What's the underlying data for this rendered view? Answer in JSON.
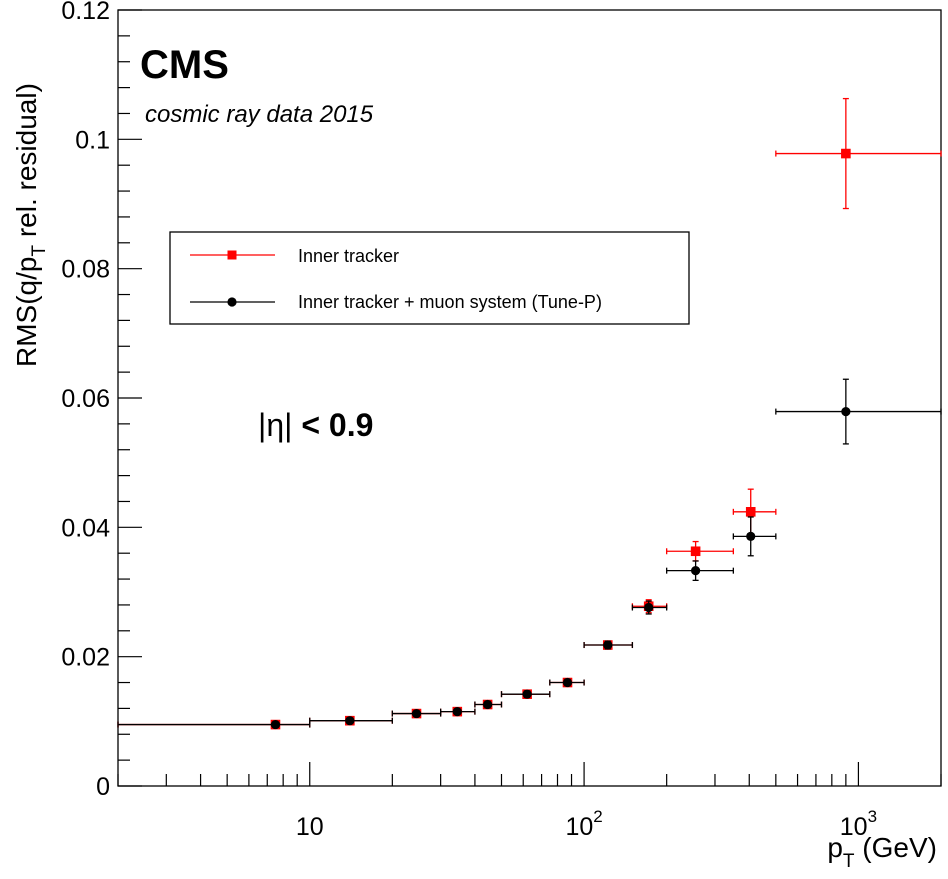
{
  "chart_data": {
    "type": "scatter",
    "experiment_label": "CMS",
    "subtitle": "cosmic ray data 2015",
    "region_label_symbol": "|η|",
    "region_label_rest": " < 0.9",
    "xlabel": {
      "base": "p",
      "sub": "T",
      "unit": " (GeV)"
    },
    "ylabel": {
      "part1": "RMS(q/p",
      "sub": "T",
      "part2": " rel. residual)"
    },
    "x_scale": "log",
    "xlim": [
      2,
      2000
    ],
    "ylim": [
      0,
      0.12
    ],
    "y_ticks": [
      {
        "value": 0,
        "label": "0"
      },
      {
        "value": 0.02,
        "label": "0.02"
      },
      {
        "value": 0.04,
        "label": "0.04"
      },
      {
        "value": 0.06,
        "label": "0.06"
      },
      {
        "value": 0.08,
        "label": "0.08"
      },
      {
        "value": 0.1,
        "label": "0.1"
      },
      {
        "value": 0.12,
        "label": "0.12"
      }
    ],
    "x_ticks": [
      {
        "value": 10,
        "base": "10",
        "exp": ""
      },
      {
        "value": 100,
        "base": "10",
        "exp": "2"
      },
      {
        "value": 1000,
        "base": "10",
        "exp": "3"
      }
    ],
    "grid": false,
    "legend_position": "upper-left",
    "series": [
      {
        "name": "Inner tracker",
        "color": "#ff0000",
        "marker": "square",
        "points": [
          {
            "x": 7.5,
            "xlo": 2,
            "xhi": 10,
            "y": 0.0095,
            "yerr": 0.0004
          },
          {
            "x": 14,
            "xlo": 10,
            "xhi": 20,
            "y": 0.0101,
            "yerr": 0.0004
          },
          {
            "x": 24.5,
            "xlo": 20,
            "xhi": 30,
            "y": 0.0112,
            "yerr": 0.0004
          },
          {
            "x": 34.5,
            "xlo": 30,
            "xhi": 40,
            "y": 0.0115,
            "yerr": 0.0004
          },
          {
            "x": 44.5,
            "xlo": 40,
            "xhi": 50,
            "y": 0.0126,
            "yerr": 0.0005
          },
          {
            "x": 62,
            "xlo": 50,
            "xhi": 75,
            "y": 0.0142,
            "yerr": 0.0005
          },
          {
            "x": 87,
            "xlo": 75,
            "xhi": 100,
            "y": 0.016,
            "yerr": 0.0005
          },
          {
            "x": 122,
            "xlo": 100,
            "xhi": 150,
            "y": 0.0218,
            "yerr": 0.0006
          },
          {
            "x": 172,
            "xlo": 150,
            "xhi": 200,
            "y": 0.0278,
            "yerr": 0.001
          },
          {
            "x": 255,
            "xlo": 200,
            "xhi": 350,
            "y": 0.0363,
            "yerr": 0.0015
          },
          {
            "x": 405,
            "xlo": 350,
            "xhi": 500,
            "y": 0.0424,
            "yerr": 0.0035
          },
          {
            "x": 900,
            "xlo": 500,
            "xhi": 2000,
            "y": 0.0978,
            "yerr": 0.0085
          }
        ]
      },
      {
        "name": "Inner tracker + muon system (Tune-P)",
        "color": "#000000",
        "marker": "circle",
        "points": [
          {
            "x": 7.5,
            "xlo": 2,
            "xhi": 10,
            "y": 0.0095,
            "yerr": 0.0004
          },
          {
            "x": 14,
            "xlo": 10,
            "xhi": 20,
            "y": 0.0101,
            "yerr": 0.0004
          },
          {
            "x": 24.5,
            "xlo": 20,
            "xhi": 30,
            "y": 0.0112,
            "yerr": 0.0004
          },
          {
            "x": 34.5,
            "xlo": 30,
            "xhi": 40,
            "y": 0.0115,
            "yerr": 0.0004
          },
          {
            "x": 44.5,
            "xlo": 40,
            "xhi": 50,
            "y": 0.0126,
            "yerr": 0.0005
          },
          {
            "x": 62,
            "xlo": 50,
            "xhi": 75,
            "y": 0.0142,
            "yerr": 0.0005
          },
          {
            "x": 87,
            "xlo": 75,
            "xhi": 100,
            "y": 0.016,
            "yerr": 0.0005
          },
          {
            "x": 122,
            "xlo": 100,
            "xhi": 150,
            "y": 0.0218,
            "yerr": 0.0006
          },
          {
            "x": 172,
            "xlo": 150,
            "xhi": 200,
            "y": 0.0276,
            "yerr": 0.001
          },
          {
            "x": 255,
            "xlo": 200,
            "xhi": 350,
            "y": 0.0333,
            "yerr": 0.0015
          },
          {
            "x": 405,
            "xlo": 350,
            "xhi": 500,
            "y": 0.0386,
            "yerr": 0.003
          },
          {
            "x": 900,
            "xlo": 500,
            "xhi": 2000,
            "y": 0.0579,
            "yerr": 0.005
          }
        ]
      }
    ]
  }
}
